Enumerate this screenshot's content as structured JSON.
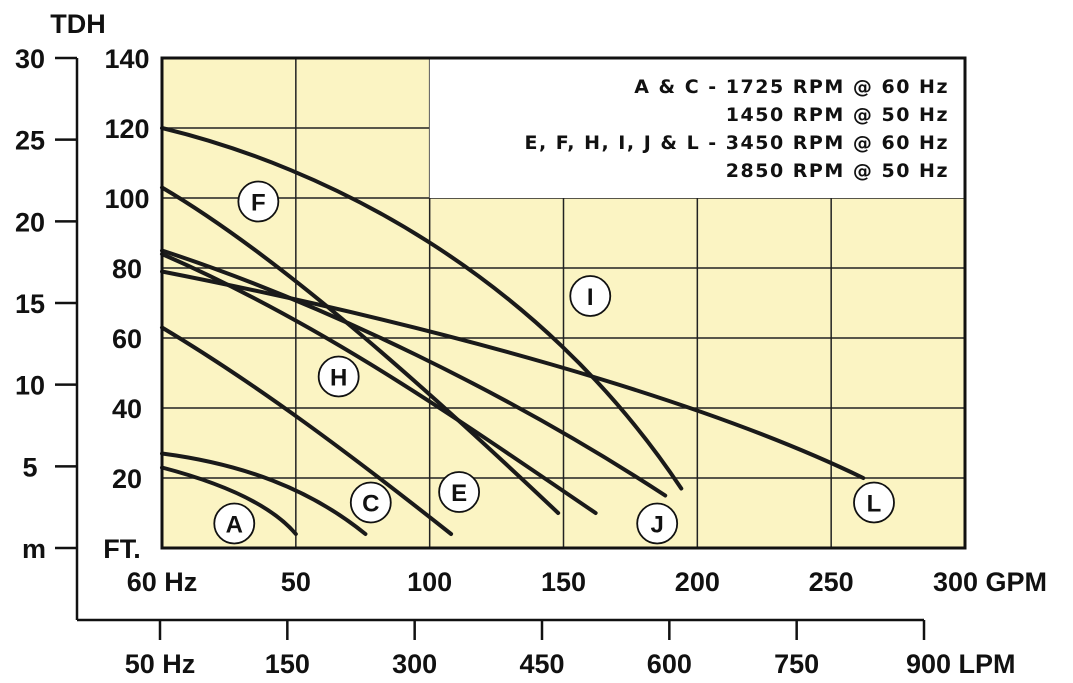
{
  "chart_data": {
    "type": "line",
    "title": "",
    "plot_background": "#fbf4c3",
    "grid": true,
    "line_color": "#1a1a1a",
    "primary_x_axis": {
      "label": "GPM",
      "range": [
        0,
        300
      ],
      "ticks": [
        {
          "value": 0,
          "label": "60 Hz"
        },
        {
          "value": 50,
          "label": "50"
        },
        {
          "value": 100,
          "label": "100"
        },
        {
          "value": 150,
          "label": "150"
        },
        {
          "value": 200,
          "label": "200"
        },
        {
          "value": 250,
          "label": "250"
        },
        {
          "value": 300,
          "label": "300 GPM"
        }
      ]
    },
    "secondary_x_axis": {
      "label": "LPM",
      "range": [
        0,
        900
      ],
      "ticks": [
        {
          "value": 0,
          "label": "50 Hz"
        },
        {
          "value": 150,
          "label": "150"
        },
        {
          "value": 300,
          "label": "300"
        },
        {
          "value": 450,
          "label": "450"
        },
        {
          "value": 600,
          "label": "600"
        },
        {
          "value": 750,
          "label": "750"
        },
        {
          "value": 900,
          "label": "900 LPM"
        }
      ]
    },
    "primary_y_axis": {
      "label": "FT.",
      "range": [
        0,
        140
      ],
      "ticks": [
        {
          "value": 20,
          "label": "20"
        },
        {
          "value": 40,
          "label": "40"
        },
        {
          "value": 60,
          "label": "60"
        },
        {
          "value": 80,
          "label": "80"
        },
        {
          "value": 100,
          "label": "100"
        },
        {
          "value": 120,
          "label": "120"
        },
        {
          "value": 140,
          "label": "140"
        }
      ]
    },
    "secondary_y_axis": {
      "title": "TDH",
      "unit": "m",
      "range": [
        0,
        30
      ],
      "ticks": [
        {
          "value": 5,
          "label": "5"
        },
        {
          "value": 10,
          "label": "10"
        },
        {
          "value": 15,
          "label": "15"
        },
        {
          "value": 20,
          "label": "20"
        },
        {
          "value": 25,
          "label": "25"
        },
        {
          "value": 30,
          "label": "30"
        }
      ]
    },
    "legend": {
      "placement": "top-right",
      "lines": [
        "A & C - 1725 RPM @ 60 Hz",
        "1450 RPM @ 50 Hz",
        "E, F, H, I, J & L - 3450 RPM @ 60 Hz",
        "2850 RPM @ 50 Hz"
      ]
    },
    "series": [
      {
        "name": "A",
        "points": [
          [
            0,
            23
          ],
          [
            20,
            19
          ],
          [
            40,
            13
          ],
          [
            50,
            4
          ]
        ],
        "label_at": [
          27,
          7
        ]
      },
      {
        "name": "C",
        "points": [
          [
            0,
            27
          ],
          [
            30,
            24
          ],
          [
            55,
            17
          ],
          [
            76,
            4
          ]
        ],
        "label_at": [
          78,
          13
        ]
      },
      {
        "name": "E",
        "points": [
          [
            0,
            63
          ],
          [
            35,
            47
          ],
          [
            70,
            27
          ],
          [
            108,
            4
          ]
        ],
        "label_at": [
          111,
          16
        ]
      },
      {
        "name": "F",
        "points": [
          [
            0,
            103
          ],
          [
            40,
            85
          ],
          [
            90,
            52
          ],
          [
            148,
            10
          ]
        ],
        "label_at": [
          36,
          99
        ]
      },
      {
        "name": "H",
        "points": [
          [
            0,
            84
          ],
          [
            60,
            64
          ],
          [
            110,
            37
          ],
          [
            162,
            10
          ]
        ],
        "label_at": [
          66,
          49
        ]
      },
      {
        "name": "J",
        "points": [
          [
            0,
            85
          ],
          [
            60,
            70
          ],
          [
            130,
            44
          ],
          [
            188,
            15
          ]
        ],
        "label_at": [
          185,
          7
        ]
      },
      {
        "name": "I",
        "points": [
          [
            0,
            120
          ],
          [
            60,
            109
          ],
          [
            140,
            79
          ],
          [
            194,
            17
          ]
        ],
        "label_at": [
          160,
          72
        ]
      },
      {
        "name": "L",
        "points": [
          [
            0,
            79
          ],
          [
            100,
            64
          ],
          [
            200,
            43
          ],
          [
            262,
            20
          ]
        ],
        "label_at": [
          266,
          13
        ]
      }
    ]
  }
}
